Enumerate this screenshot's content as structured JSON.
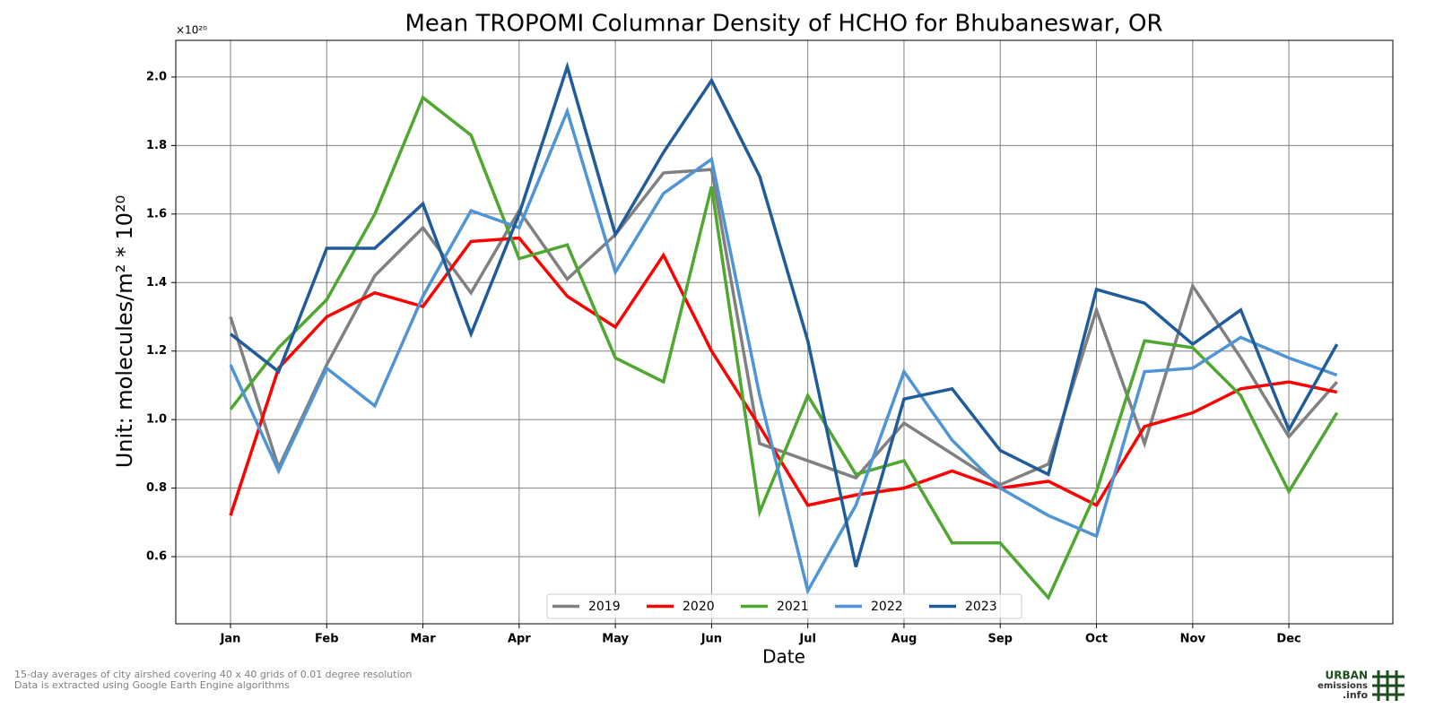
{
  "chart_data": {
    "type": "line",
    "title": "Mean TROPOMI Columnar Density of HCHO for Bhubaneswar, OR",
    "xlabel": "Date",
    "ylabel": "Unit: molecules/m² * 10²⁰",
    "y_offset_label": "×10²⁰",
    "categories": [
      "Jan",
      null,
      "Feb",
      null,
      "Mar",
      null,
      "Apr",
      null,
      "May",
      null,
      "Jun",
      null,
      "Jul",
      null,
      "Aug",
      null,
      "Sep",
      null,
      "Oct",
      null,
      "Nov",
      null,
      "Dec",
      null
    ],
    "series": [
      {
        "name": "2019",
        "color": "#808080",
        "values": [
          1.3,
          0.86,
          1.16,
          1.42,
          1.56,
          1.37,
          1.61,
          1.41,
          1.54,
          1.72,
          1.73,
          0.93,
          0.88,
          0.83,
          0.99,
          0.9,
          0.81,
          0.87,
          1.32,
          0.93,
          1.39,
          1.18,
          0.95,
          1.11
        ]
      },
      {
        "name": "2020",
        "color": "#ff0000",
        "values": [
          0.72,
          1.15,
          1.3,
          1.37,
          1.33,
          1.52,
          1.53,
          1.36,
          1.27,
          1.48,
          1.2,
          0.98,
          0.75,
          0.78,
          0.8,
          0.85,
          0.8,
          0.82,
          0.75,
          0.98,
          1.02,
          1.09,
          1.11,
          1.08
        ]
      },
      {
        "name": "2021",
        "color": "#4ea72e",
        "values": [
          1.03,
          1.21,
          1.35,
          1.6,
          1.94,
          1.83,
          1.47,
          1.51,
          1.18,
          1.11,
          1.68,
          0.73,
          1.07,
          0.84,
          0.88,
          0.64,
          0.64,
          0.48,
          0.79,
          1.23,
          1.21,
          1.07,
          0.79,
          1.02
        ]
      },
      {
        "name": "2022",
        "color": "#4f94d4",
        "values": [
          1.16,
          0.85,
          1.15,
          1.04,
          1.36,
          1.61,
          1.56,
          1.9,
          1.43,
          1.66,
          1.76,
          1.07,
          0.5,
          0.75,
          1.14,
          0.94,
          0.8,
          0.72,
          0.66,
          1.14,
          1.15,
          1.24,
          1.18,
          1.13
        ]
      },
      {
        "name": "2023",
        "color": "#1f5c99",
        "values": [
          1.25,
          1.14,
          1.5,
          1.5,
          1.63,
          1.25,
          1.6,
          2.03,
          1.54,
          1.78,
          1.99,
          1.71,
          1.23,
          0.57,
          1.06,
          1.09,
          0.91,
          0.84,
          1.38,
          1.34,
          1.22,
          1.32,
          0.97,
          1.22
        ]
      }
    ],
    "ylim": [
      0.404,
      2.107
    ],
    "yticks": [
      0.6,
      0.8,
      {
        "value": 1.0,
        "label": "1.0"
      },
      1.2,
      1.4,
      1.6,
      1.8,
      {
        "value": 2.0,
        "label": "2.0"
      }
    ],
    "grid": true,
    "legend": "lower center",
    "footnotes": [
      "15-day averages of city airshed covering 40 x 40 grids of 0.01 degree resolution",
      "Data is extracted using Google Earth Engine algorithms"
    ],
    "logo": [
      "URBAN",
      "emissions",
      ".info"
    ]
  }
}
